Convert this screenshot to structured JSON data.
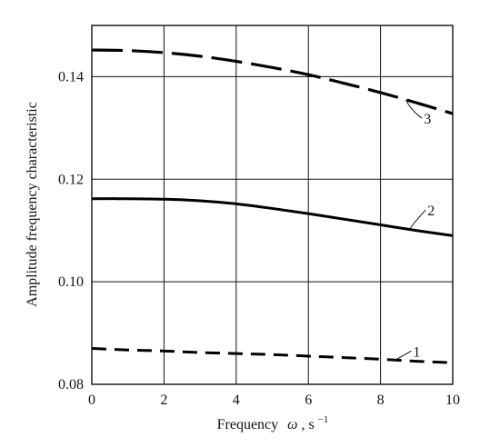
{
  "chart_data": {
    "type": "line",
    "xlabel": "Frequency",
    "xlabel_symbol": "ω",
    "xlabel_unit": ", s",
    "xlabel_unit_exp": "−1",
    "ylabel": "Amplitude frequency characteristic",
    "xlim": [
      0,
      10
    ],
    "ylim": [
      0.08,
      0.15
    ],
    "x_ticks": [
      0,
      2,
      4,
      6,
      8,
      10
    ],
    "x_tick_labels": [
      "0",
      "2",
      "4",
      "6",
      "8",
      "10"
    ],
    "y_ticks": [
      0.08,
      0.1,
      0.12,
      0.14
    ],
    "y_tick_labels": [
      "0.08",
      "0.10",
      "0.12",
      "0.14"
    ],
    "grid": true,
    "x": [
      0,
      1,
      2,
      3,
      4,
      5,
      6,
      7,
      8,
      9,
      10
    ],
    "series": [
      {
        "name": "1",
        "style": "short-dash",
        "values": [
          0.087,
          0.0867,
          0.0865,
          0.0862,
          0.086,
          0.0858,
          0.0855,
          0.0852,
          0.0849,
          0.0845,
          0.0842
        ],
        "label_at": [
          8.9,
          0.0858
        ]
      },
      {
        "name": "2",
        "style": "solid",
        "values": [
          0.1162,
          0.1162,
          0.1161,
          0.1158,
          0.1152,
          0.1143,
          0.1133,
          0.1122,
          0.1111,
          0.11,
          0.109
        ],
        "label_at": [
          9.3,
          0.1133
        ]
      },
      {
        "name": "3",
        "style": "long-dash",
        "values": [
          0.1452,
          0.1451,
          0.1447,
          0.144,
          0.143,
          0.1418,
          0.1404,
          0.1387,
          0.1369,
          0.1349,
          0.1328
        ],
        "label_at": [
          9.2,
          0.1312
        ]
      }
    ]
  }
}
